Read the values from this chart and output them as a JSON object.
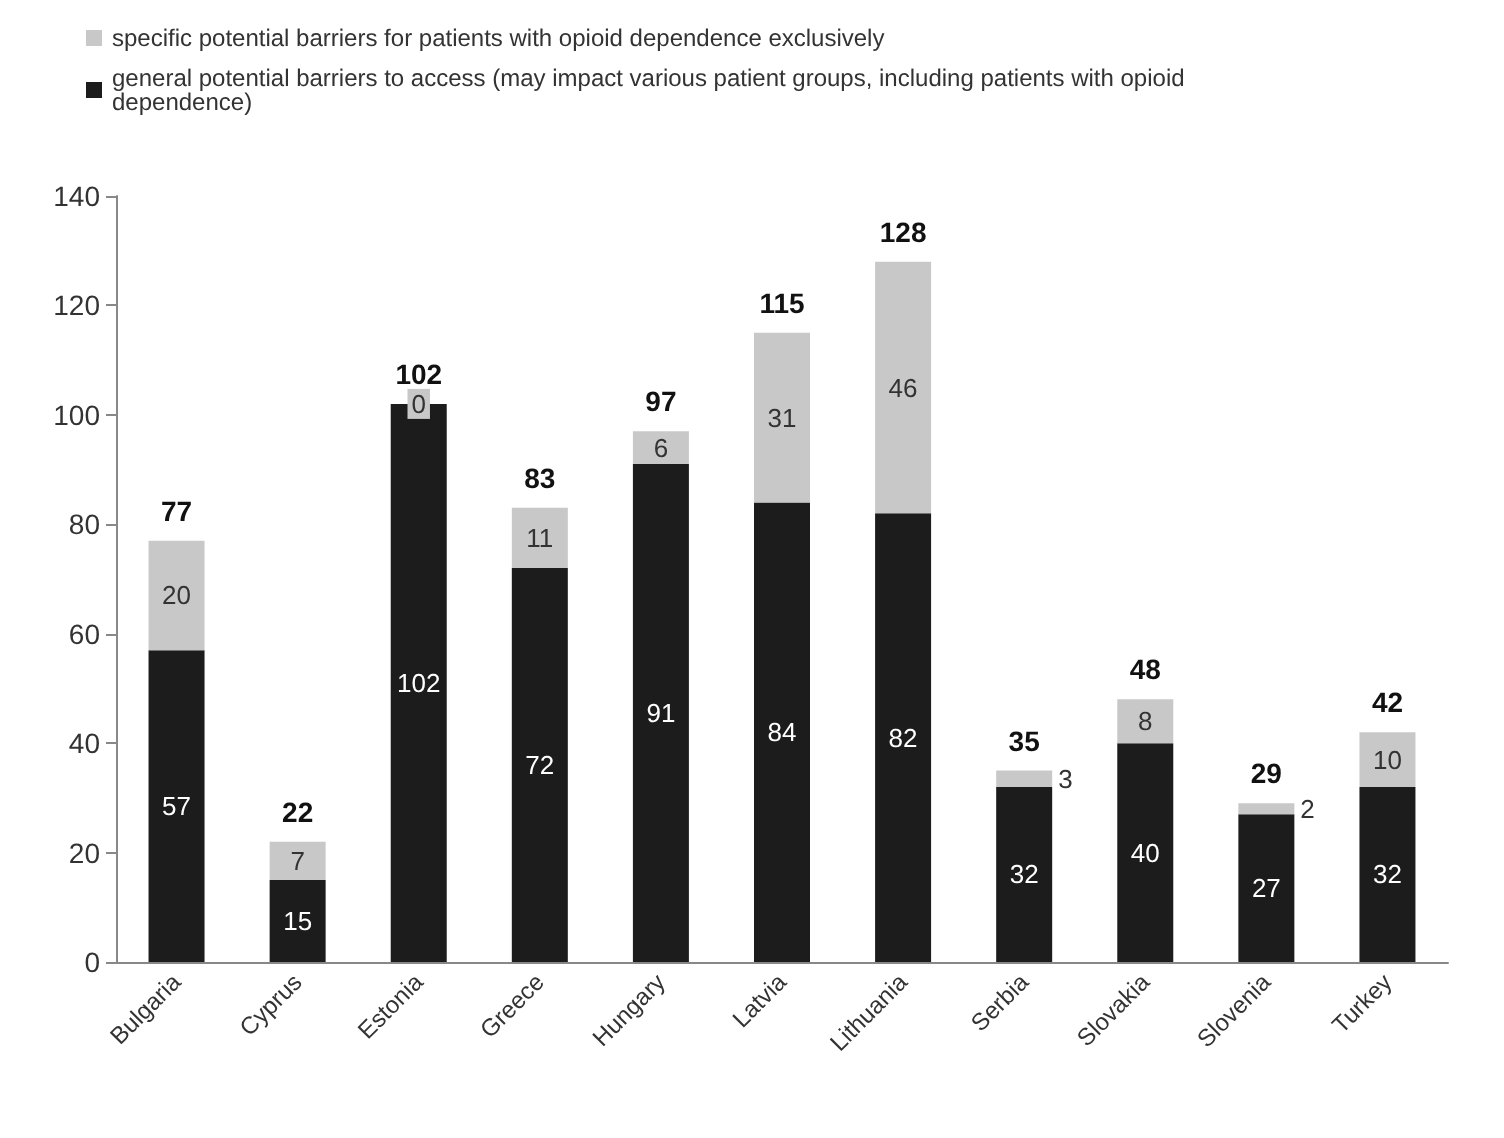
{
  "chart_data": {
    "type": "bar",
    "stacked": true,
    "categories": [
      "Bulgaria",
      "Cyprus",
      "Estonia",
      "Greece",
      "Hungary",
      "Latvia",
      "Lithuania",
      "Serbia",
      "Slovakia",
      "Slovenia",
      "Turkey"
    ],
    "series": [
      {
        "name": "general potential barriers to access (may impact various patient groups, including patients with opioid dependence)",
        "color": "#1c1c1c",
        "values": [
          57,
          15,
          102,
          72,
          91,
          84,
          82,
          32,
          40,
          27,
          32
        ]
      },
      {
        "name": "specific potential barriers for patients with opioid dependence exclusively",
        "color": "#c8c8c8",
        "values": [
          20,
          7,
          0,
          11,
          6,
          31,
          46,
          3,
          8,
          2,
          10
        ]
      }
    ],
    "totals": [
      "77",
      "22",
      "102",
      "83",
      "97",
      "115",
      "128",
      "35",
      "48",
      "29",
      "42"
    ],
    "data_labels": true,
    "ylim": [
      0,
      140
    ],
    "yticks": [
      0,
      20,
      40,
      60,
      80,
      100,
      120,
      140
    ],
    "grid": false,
    "legend": "top left"
  }
}
